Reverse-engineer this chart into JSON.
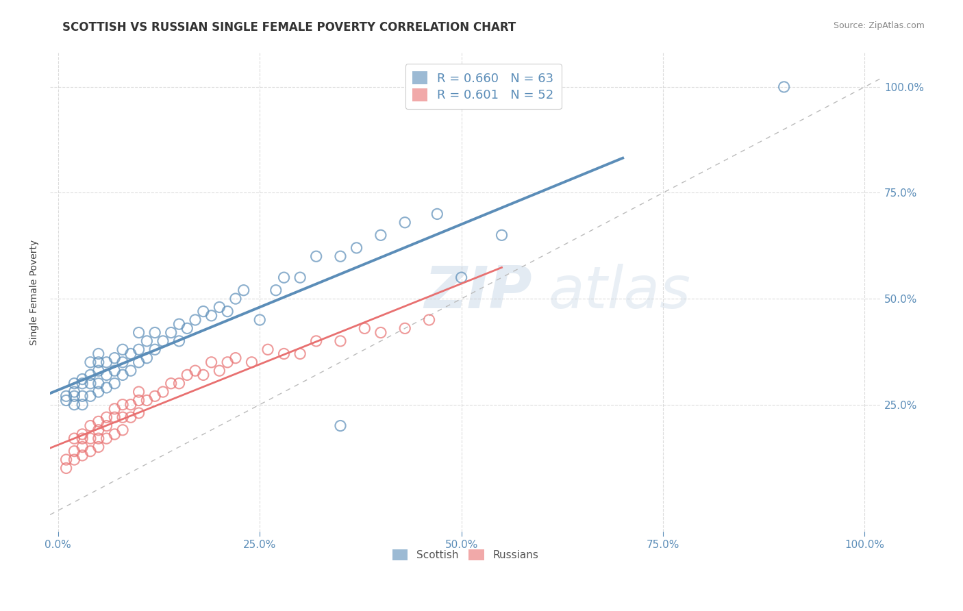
{
  "title": "SCOTTISH VS RUSSIAN SINGLE FEMALE POVERTY CORRELATION CHART",
  "source_text": "Source: ZipAtlas.com",
  "ylabel": "Single Female Poverty",
  "xlim": [
    -0.01,
    1.02
  ],
  "ylim": [
    -0.05,
    1.08
  ],
  "xtick_vals": [
    0.0,
    0.25,
    0.5,
    0.75,
    1.0
  ],
  "xtick_labels": [
    "0.0%",
    "25.0%",
    "50.0%",
    "75.0%",
    "100.0%"
  ],
  "ytick_vals": [
    0.25,
    0.5,
    0.75,
    1.0
  ],
  "ytick_labels": [
    "25.0%",
    "50.0%",
    "75.0%",
    "100.0%"
  ],
  "scottish_R": 0.66,
  "scottish_N": 63,
  "russian_R": 0.601,
  "russian_N": 52,
  "scottish_color": "#5B8DB8",
  "russian_color": "#E87070",
  "legend_scottish_label": "Scottish",
  "legend_russian_label": "Russians",
  "scottish_x": [
    0.01,
    0.01,
    0.02,
    0.02,
    0.02,
    0.02,
    0.03,
    0.03,
    0.03,
    0.03,
    0.04,
    0.04,
    0.04,
    0.04,
    0.05,
    0.05,
    0.05,
    0.05,
    0.05,
    0.06,
    0.06,
    0.06,
    0.07,
    0.07,
    0.07,
    0.08,
    0.08,
    0.08,
    0.09,
    0.09,
    0.1,
    0.1,
    0.1,
    0.11,
    0.11,
    0.12,
    0.12,
    0.13,
    0.14,
    0.15,
    0.15,
    0.16,
    0.17,
    0.18,
    0.19,
    0.2,
    0.21,
    0.22,
    0.23,
    0.25,
    0.27,
    0.28,
    0.3,
    0.32,
    0.35,
    0.37,
    0.4,
    0.43,
    0.47,
    0.5,
    0.55,
    0.9,
    0.35
  ],
  "scottish_y": [
    0.26,
    0.27,
    0.25,
    0.27,
    0.28,
    0.3,
    0.25,
    0.27,
    0.3,
    0.31,
    0.27,
    0.3,
    0.32,
    0.35,
    0.28,
    0.3,
    0.33,
    0.35,
    0.37,
    0.29,
    0.32,
    0.35,
    0.3,
    0.33,
    0.36,
    0.32,
    0.35,
    0.38,
    0.33,
    0.37,
    0.35,
    0.38,
    0.42,
    0.36,
    0.4,
    0.38,
    0.42,
    0.4,
    0.42,
    0.4,
    0.44,
    0.43,
    0.45,
    0.47,
    0.46,
    0.48,
    0.47,
    0.5,
    0.52,
    0.45,
    0.52,
    0.55,
    0.55,
    0.6,
    0.6,
    0.62,
    0.65,
    0.68,
    0.7,
    0.55,
    0.65,
    1.0,
    0.2
  ],
  "russian_x": [
    0.01,
    0.01,
    0.02,
    0.02,
    0.02,
    0.03,
    0.03,
    0.03,
    0.03,
    0.04,
    0.04,
    0.04,
    0.05,
    0.05,
    0.05,
    0.05,
    0.06,
    0.06,
    0.06,
    0.07,
    0.07,
    0.07,
    0.08,
    0.08,
    0.08,
    0.09,
    0.09,
    0.1,
    0.1,
    0.1,
    0.11,
    0.12,
    0.13,
    0.14,
    0.15,
    0.16,
    0.17,
    0.18,
    0.19,
    0.2,
    0.21,
    0.22,
    0.24,
    0.26,
    0.28,
    0.3,
    0.32,
    0.35,
    0.38,
    0.4,
    0.43,
    0.46
  ],
  "russian_y": [
    0.1,
    0.12,
    0.12,
    0.14,
    0.17,
    0.13,
    0.15,
    0.17,
    0.18,
    0.14,
    0.17,
    0.2,
    0.15,
    0.17,
    0.19,
    0.21,
    0.17,
    0.2,
    0.22,
    0.18,
    0.22,
    0.24,
    0.19,
    0.22,
    0.25,
    0.22,
    0.25,
    0.23,
    0.26,
    0.28,
    0.26,
    0.27,
    0.28,
    0.3,
    0.3,
    0.32,
    0.33,
    0.32,
    0.35,
    0.33,
    0.35,
    0.36,
    0.35,
    0.38,
    0.37,
    0.37,
    0.4,
    0.4,
    0.43,
    0.42,
    0.43,
    0.45
  ],
  "background_color": "#FFFFFF",
  "grid_color": "#CCCCCC",
  "title_fontsize": 12,
  "axis_label_fontsize": 10,
  "tick_fontsize": 11,
  "legend_fontsize": 13
}
